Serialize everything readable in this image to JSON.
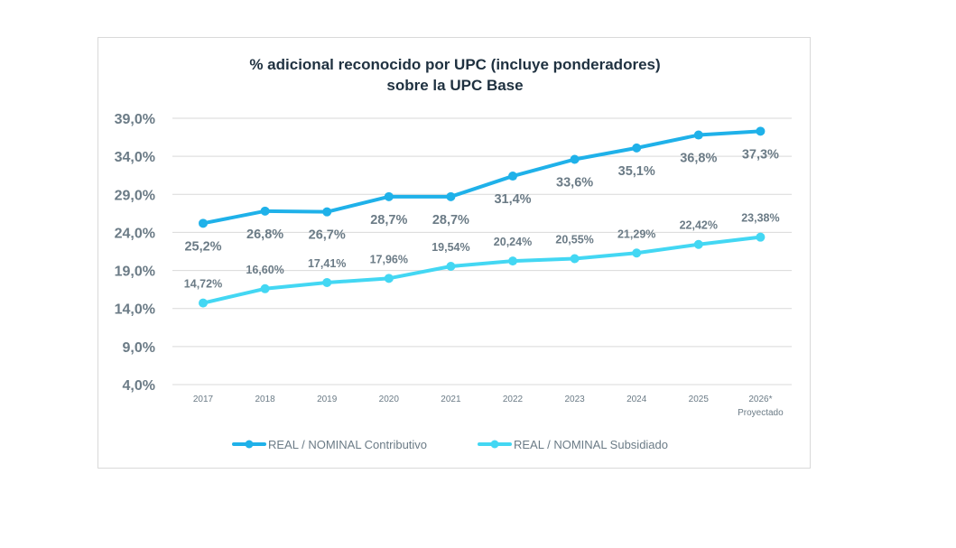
{
  "chart_data": {
    "type": "line",
    "title": [
      "% adicional reconocido por UPC (incluye ponderadores)",
      "sobre la UPC Base"
    ],
    "categories": [
      "2017",
      "2018",
      "2019",
      "2020",
      "2021",
      "2022",
      "2023",
      "2024",
      "2025",
      "2026*"
    ],
    "category_sublabels": {
      "2026*": "Proyectado"
    },
    "y_ticks": [
      4.0,
      9.0,
      14.0,
      19.0,
      24.0,
      29.0,
      34.0,
      39.0
    ],
    "y_tick_labels": [
      "4,0%",
      "9,0%",
      "14,0%",
      "19,0%",
      "24,0%",
      "29,0%",
      "34,0%",
      "39,0%"
    ],
    "ylim": [
      4.0,
      39.0
    ],
    "grid": true,
    "legend_position": "bottom",
    "series": [
      {
        "name": "REAL / NOMINAL Contributivo",
        "color": "#1fb1e9",
        "values": [
          25.2,
          26.8,
          26.7,
          28.7,
          28.7,
          31.4,
          33.6,
          35.1,
          36.8,
          37.3
        ],
        "labels": [
          "25,2%",
          "26,8%",
          "26,7%",
          "28,7%",
          "28,7%",
          "31,4%",
          "33,6%",
          "35,1%",
          "36,8%",
          "37,3%"
        ],
        "label_positions": [
          "below",
          "below",
          "below",
          "below",
          "below",
          "below",
          "below",
          "below",
          "below",
          "below"
        ]
      },
      {
        "name": "REAL / NOMINAL Subsidiado",
        "color": "#43d7f3",
        "values": [
          14.72,
          16.6,
          17.41,
          17.96,
          19.54,
          20.24,
          20.55,
          21.29,
          22.42,
          23.38
        ],
        "labels": [
          "14,72%",
          "16,60%",
          "17,41%",
          "17,96%",
          "19,54%",
          "20,24%",
          "20,55%",
          "21,29%",
          "22,42%",
          "23,38%"
        ],
        "label_positions": [
          "above",
          "above",
          "above",
          "above",
          "above",
          "above",
          "above",
          "above",
          "above",
          "above"
        ]
      }
    ]
  }
}
